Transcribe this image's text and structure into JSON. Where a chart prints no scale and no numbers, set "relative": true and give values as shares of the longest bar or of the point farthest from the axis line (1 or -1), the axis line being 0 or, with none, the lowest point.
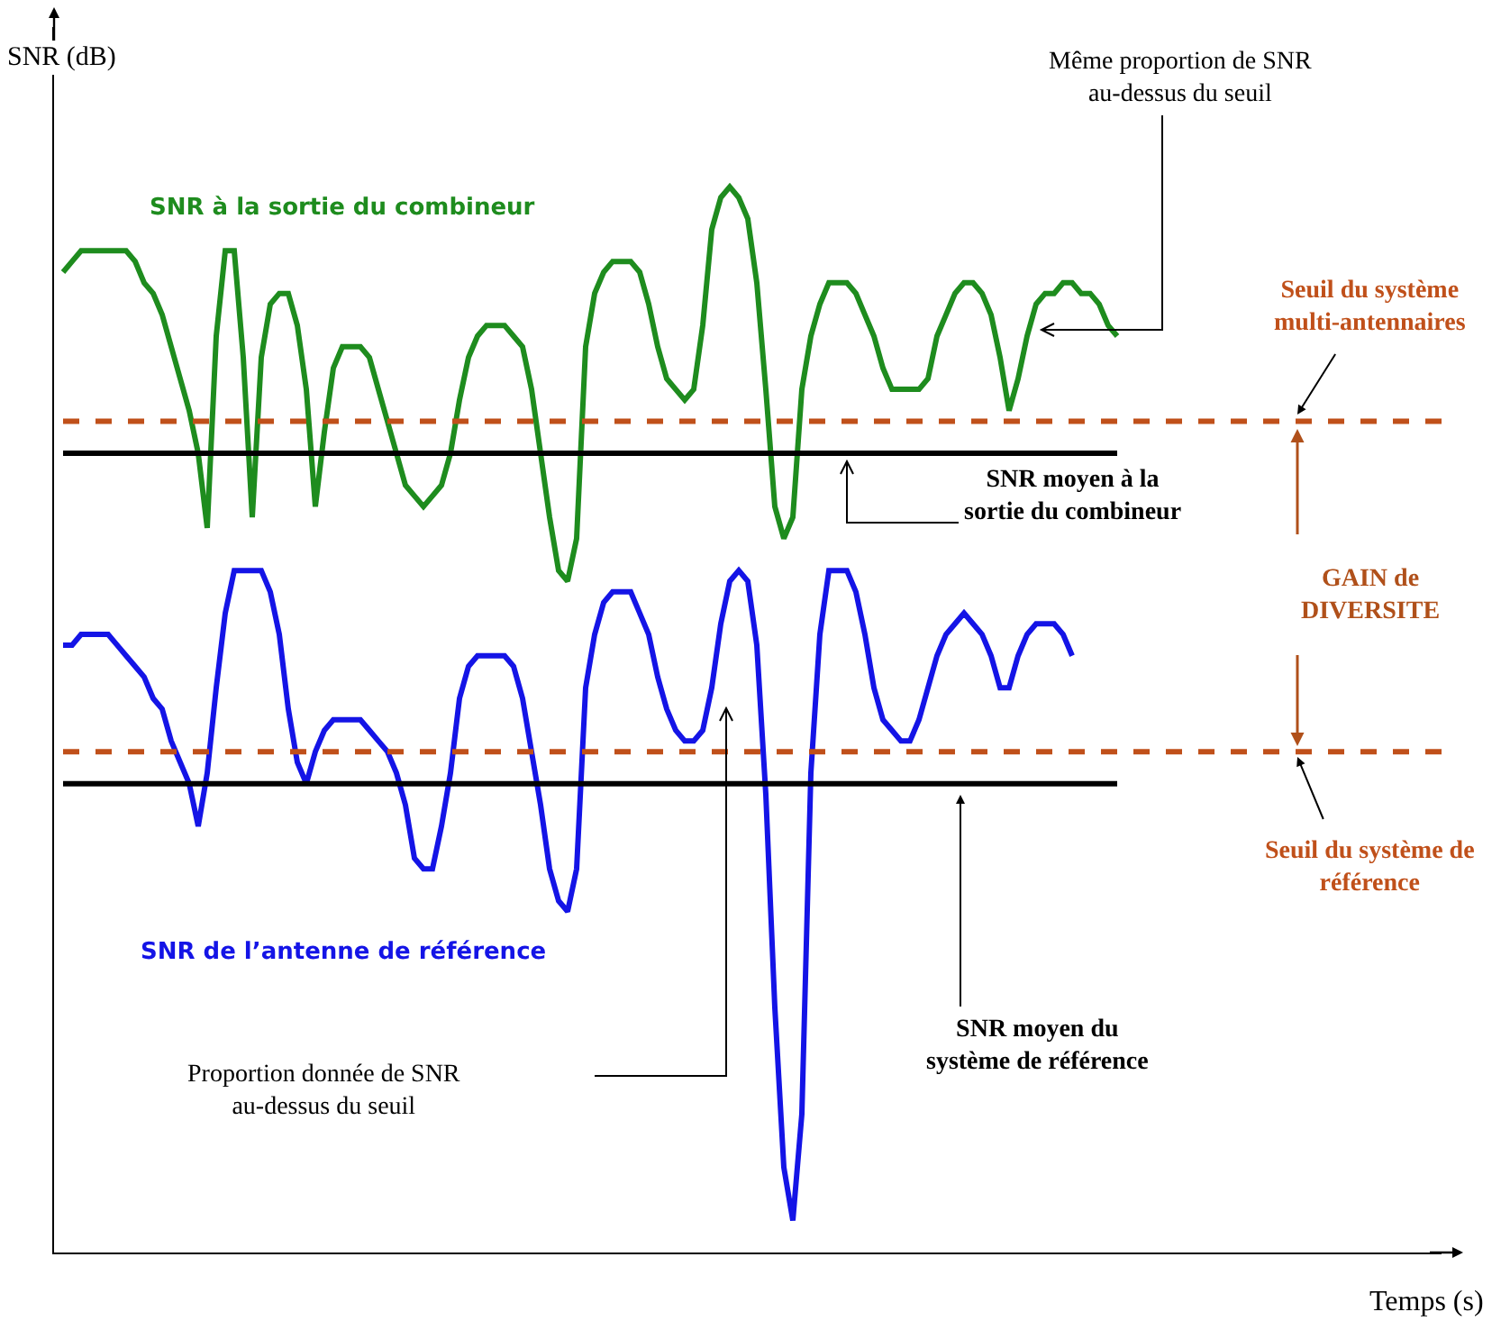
{
  "chart_data": {
    "type": "line",
    "relative": true,
    "ylabel": "SNR (dB)",
    "legend": false,
    "grid": false,
    "marker": "none",
    "line_style": "solid",
    "categories": [
      null,
      null,
      null,
      null,
      null,
      null,
      null,
      null,
      null,
      null,
      null,
      null,
      null,
      null,
      null,
      null,
      null,
      null,
      null,
      null,
      null,
      null,
      null,
      null,
      null,
      null,
      null,
      null,
      null,
      null,
      null,
      null,
      null,
      null,
      null,
      null,
      null,
      null,
      null,
      null,
      null,
      null,
      null,
      null,
      null,
      null,
      null,
      null,
      null,
      null,
      null,
      null,
      null,
      null,
      null,
      null,
      null,
      null,
      null,
      null,
      null,
      null,
      null,
      null,
      null,
      null,
      null,
      null,
      null,
      null,
      null,
      null,
      null,
      null,
      null,
      null,
      null,
      null,
      null,
      null,
      null,
      null,
      null,
      null,
      null,
      null,
      null,
      null,
      null,
      null,
      null,
      null,
      null,
      null,
      null,
      null,
      null,
      null,
      null,
      null,
      null,
      null,
      null,
      null,
      null,
      null,
      null,
      null,
      null,
      null,
      null,
      null,
      null,
      null,
      null,
      null,
      null,
      null
    ],
    "series": [
      {
        "name": "SNR à la sortie du combineur",
        "color": "#1e8c1e",
        "values": [
          0.92,
          0.93,
          0.94,
          0.94,
          0.94,
          0.94,
          0.94,
          0.94,
          0.93,
          0.91,
          0.9,
          0.88,
          0.85,
          0.82,
          0.79,
          0.75,
          0.68,
          0.86,
          0.94,
          0.94,
          0.84,
          0.69,
          0.84,
          0.89,
          0.9,
          0.9,
          0.87,
          0.81,
          0.7,
          0.77,
          0.83,
          0.85,
          0.85,
          0.85,
          0.84,
          0.81,
          0.78,
          0.75,
          0.72,
          0.71,
          0.7,
          0.71,
          0.72,
          0.75,
          0.8,
          0.84,
          0.86,
          0.87,
          0.87,
          0.87,
          0.86,
          0.85,
          0.81,
          0.75,
          0.69,
          0.64,
          0.63,
          0.67,
          0.85,
          0.9,
          0.92,
          0.93,
          0.93,
          0.93,
          0.92,
          0.89,
          0.85,
          0.82,
          0.81,
          0.8,
          0.81,
          0.87,
          0.96,
          0.99,
          1.0,
          0.99,
          0.97,
          0.91,
          0.81,
          0.7,
          0.67,
          0.69,
          0.81,
          0.86,
          0.89,
          0.91,
          0.91,
          0.91,
          0.9,
          0.88,
          0.86,
          0.83,
          0.81,
          0.81,
          0.81,
          0.81,
          0.82,
          0.86,
          0.88,
          0.9,
          0.91,
          0.91,
          0.9,
          0.88,
          0.84,
          0.79,
          0.82,
          0.86,
          0.89,
          0.9,
          0.9,
          0.91,
          0.91,
          0.9,
          0.9,
          0.89,
          0.87,
          0.86
        ]
      },
      {
        "name": "SNR de l’antenne de référence",
        "color": "#1414e6",
        "values": [
          0.57,
          0.57,
          0.58,
          0.58,
          0.58,
          0.58,
          0.57,
          0.56,
          0.55,
          0.54,
          0.52,
          0.51,
          0.48,
          0.46,
          0.44,
          0.4,
          0.45,
          0.53,
          0.6,
          0.64,
          0.64,
          0.64,
          0.64,
          0.62,
          0.58,
          0.51,
          0.46,
          0.44,
          0.47,
          0.49,
          0.5,
          0.5,
          0.5,
          0.5,
          0.49,
          0.48,
          0.47,
          0.45,
          0.42,
          0.37,
          0.36,
          0.36,
          0.4,
          0.45,
          0.52,
          0.55,
          0.56,
          0.56,
          0.56,
          0.56,
          0.55,
          0.52,
          0.47,
          0.42,
          0.36,
          0.33,
          0.32,
          0.36,
          0.53,
          0.58,
          0.61,
          0.62,
          0.62,
          0.62,
          0.6,
          0.58,
          0.54,
          0.51,
          0.49,
          0.48,
          0.48,
          0.49,
          0.53,
          0.59,
          0.63,
          0.64,
          0.63,
          0.57,
          0.43,
          0.23,
          0.08,
          0.03,
          0.13,
          0.45,
          0.58,
          0.64,
          0.64,
          0.64,
          0.62,
          0.58,
          0.53,
          0.5,
          0.49,
          0.48,
          0.48,
          0.5,
          0.53,
          0.56,
          0.58,
          0.59,
          0.6,
          0.59,
          0.58,
          0.56,
          0.53,
          0.53,
          0.56,
          0.58,
          0.59,
          0.59,
          0.59,
          0.58,
          0.56,
          null,
          null,
          null,
          null,
          null
        ]
      }
    ],
    "ref_lines": [
      {
        "axis": "y",
        "value": 0.78,
        "label": "Seuil du système\nmulti-antennaires",
        "color": "#c0501a",
        "line_style": "dashed"
      },
      {
        "axis": "y",
        "value": 0.75,
        "label": "SNR moyen à la\nsortie du combineur",
        "color": "#000000",
        "line_style": "solid"
      },
      {
        "axis": "y",
        "value": 0.47,
        "label": "Seuil du système de\nréférence",
        "color": "#c0501a",
        "line_style": "dashed"
      },
      {
        "axis": "y",
        "value": 0.44,
        "label": "SNR moyen du\nsystème de référence",
        "color": "#000000",
        "line_style": "solid"
      }
    ],
    "annotations": [
      "Même proportion de SNR\nau-dessus du seuil",
      "GAIN de\nDIVERSITE",
      "Proportion donnée de SNR\nau-dessus du seuil",
      "Temps (s)"
    ]
  }
}
